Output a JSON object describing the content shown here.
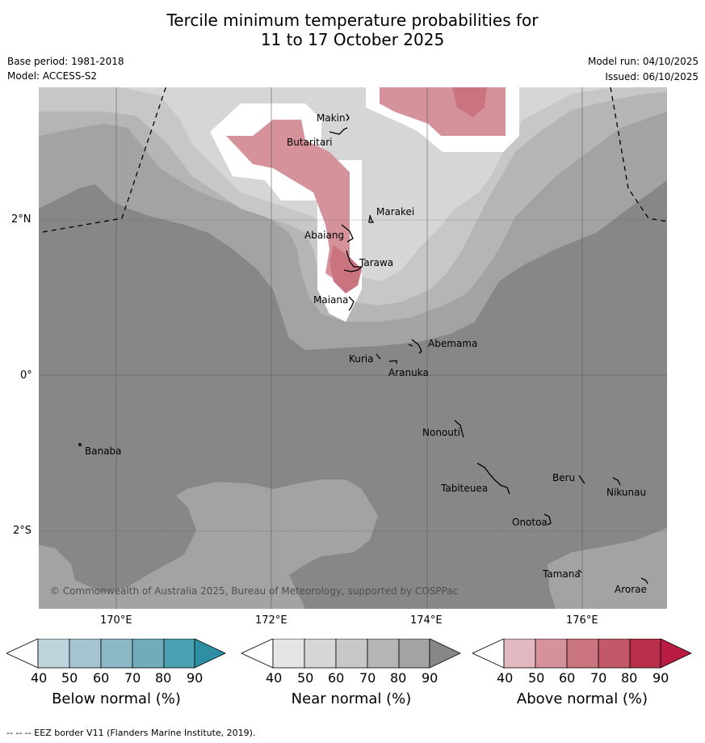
{
  "title": {
    "line1": "Tercile minimum temperature probabilities for",
    "line2": "11 to 17 October 2025"
  },
  "meta": {
    "base_period": "Base period: 1981-2018",
    "model": "Model: ACCESS-S2",
    "model_run": "Model run: 04/10/2025",
    "issued": "Issued: 06/10/2025"
  },
  "axes": {
    "lat_ticks": [
      "2°N",
      "0°",
      "2°S"
    ],
    "lon_ticks": [
      "170°E",
      "172°E",
      "174°E",
      "176°E"
    ]
  },
  "places": [
    {
      "name": "Makin"
    },
    {
      "name": "Butaritari"
    },
    {
      "name": "Marakei"
    },
    {
      "name": "Abaiang"
    },
    {
      "name": "Tarawa"
    },
    {
      "name": "Maiana"
    },
    {
      "name": "Abemama"
    },
    {
      "name": "Kuria"
    },
    {
      "name": "Aranuka"
    },
    {
      "name": "Nonouti"
    },
    {
      "name": "Banaba"
    },
    {
      "name": "Beru"
    },
    {
      "name": "Nikunau"
    },
    {
      "name": "Tabiteuea"
    },
    {
      "name": "Onotoa"
    },
    {
      "name": "Tamana"
    },
    {
      "name": "Arorae"
    }
  ],
  "copyright": "© Commonwealth of Australia 2025, Bureau of Meteorology, supported by COSPPac",
  "colorbars": [
    {
      "title": "Below normal (%)",
      "ticks": [
        "40",
        "50",
        "60",
        "70",
        "80",
        "90"
      ],
      "colors": [
        "#bdd4dc",
        "#a5c6d0",
        "#8cb8c5",
        "#70acba",
        "#4ba1b1",
        "#2e8fa4"
      ]
    },
    {
      "title": "Near normal (%)",
      "ticks": [
        "40",
        "50",
        "60",
        "70",
        "80",
        "90"
      ],
      "colors": [
        "#e5e5e5",
        "#d6d6d6",
        "#c7c7c7",
        "#b5b5b5",
        "#a3a3a3",
        "#878787"
      ]
    },
    {
      "title": "Above normal (%)",
      "ticks": [
        "40",
        "50",
        "60",
        "70",
        "80",
        "90"
      ],
      "colors": [
        "#e2b9c0",
        "#d5929b",
        "#ca747f",
        "#c35868",
        "#b92e49",
        "#b91c42"
      ]
    }
  ],
  "footnote": "--  --  -- EEZ border V11 (Flanders Marine Institute, 2019).",
  "colors": {
    "near_dark": "#878787",
    "near_mid": "#a3a3a3",
    "near_light": "#b5b5b5",
    "near_lighter": "#c7c7c7",
    "near_lightest": "#d6d6d6",
    "above_50": "#d5929b",
    "above_60": "#ca747f"
  }
}
